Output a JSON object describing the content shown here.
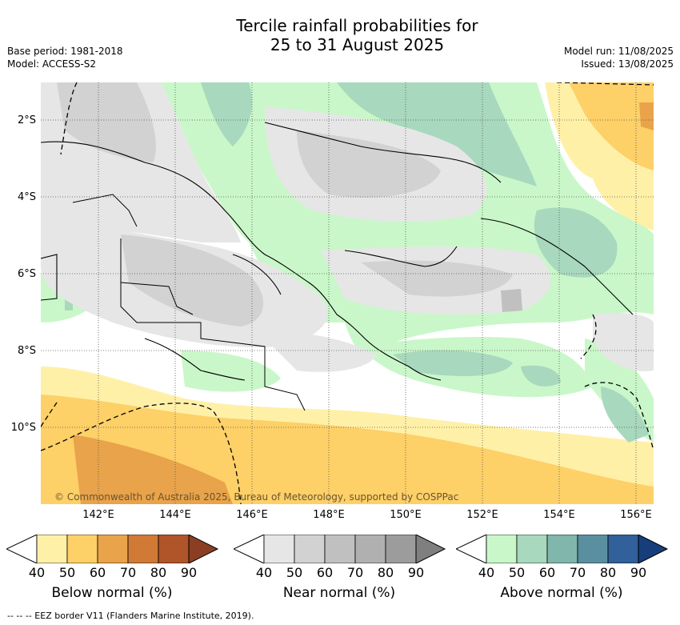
{
  "title": {
    "line1": "Tercile rainfall probabilities for",
    "line2": "25 to 31 August 2025"
  },
  "meta_left": {
    "base_period": "Base period: 1981-2018",
    "model": "Model: ACCESS-S2"
  },
  "meta_right": {
    "model_run": "Model run: 11/08/2025",
    "issued": "Issued: 13/08/2025"
  },
  "map": {
    "lat_labels": [
      "2°S",
      "4°S",
      "6°S",
      "8°S",
      "10°S"
    ],
    "lon_labels": [
      "142°E",
      "144°E",
      "146°E",
      "148°E",
      "150°E",
      "152°E",
      "154°E",
      "156°E"
    ],
    "copyright": "© Commonwealth of Australia 2025, Bureau of Meteorology, supported by COSPPac"
  },
  "colorbars": [
    {
      "title": "Below normal (%)",
      "labels": [
        "40",
        "50",
        "60",
        "70",
        "80",
        "90"
      ],
      "colors": [
        "#fff0a8",
        "#fdd068",
        "#e9a34a",
        "#d07a36",
        "#b05429",
        "#8a3e24"
      ]
    },
    {
      "title": "Near normal (%)",
      "labels": [
        "40",
        "50",
        "60",
        "70",
        "80",
        "90"
      ],
      "colors": [
        "#e6e6e6",
        "#d2d2d2",
        "#c0c0c0",
        "#b0b0b0",
        "#9c9c9c",
        "#7f7f7f"
      ]
    },
    {
      "title": "Above normal (%)",
      "labels": [
        "40",
        "50",
        "60",
        "70",
        "80",
        "90"
      ],
      "colors": [
        "#c9f7c9",
        "#a8d8bd",
        "#80b6ac",
        "#5a8fa0",
        "#31609a",
        "#173e7a"
      ]
    }
  ],
  "footnote": "-- -- -- EEZ border V11 (Flanders Marine Institute, 2019)."
}
